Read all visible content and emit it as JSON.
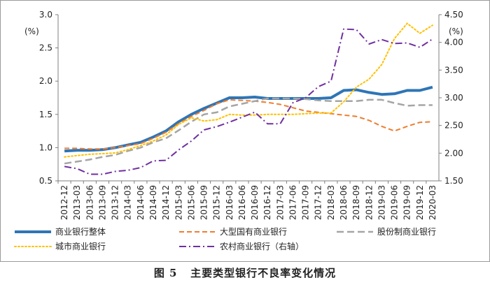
{
  "caption": {
    "figure_label": "图 5",
    "title": "主要类型银行不良率变化情况"
  },
  "chart_data": {
    "type": "line",
    "left_axis": {
      "unit": "(%)",
      "ylim": [
        0.5,
        3.0
      ],
      "ticks": [
        "0.5",
        "1.0",
        "1.5",
        "2.0",
        "2.5",
        "3.0"
      ]
    },
    "right_axis": {
      "unit": "(%)",
      "ylim": [
        1.5,
        4.5
      ],
      "ticks": [
        "1.50",
        "2.00",
        "2.50",
        "3.00",
        "3.50",
        "4.00",
        "4.50"
      ]
    },
    "categories": [
      "2012-12",
      "2013-03",
      "2013-06",
      "2013-09",
      "2013-12",
      "2014-03",
      "2014-06",
      "2014-09",
      "2014-12",
      "2015-03",
      "2015-06",
      "2015-09",
      "2015-12",
      "2016-03",
      "2016-06",
      "2016-09",
      "2016-12",
      "2017-03",
      "2017-06",
      "2017-09",
      "2017-12",
      "2018-03",
      "2018-06",
      "2018-09",
      "2018-12",
      "2019-03",
      "2019-06",
      "2019-09",
      "2019-12",
      "2020-03"
    ],
    "series": [
      {
        "name": "商业银行整体",
        "axis": "left",
        "color": "#2e75b6",
        "style": "solid",
        "values": [
          0.95,
          0.96,
          0.96,
          0.97,
          1.0,
          1.04,
          1.08,
          1.16,
          1.25,
          1.39,
          1.5,
          1.59,
          1.67,
          1.75,
          1.75,
          1.76,
          1.74,
          1.74,
          1.74,
          1.74,
          1.74,
          1.75,
          1.86,
          1.87,
          1.83,
          1.8,
          1.81,
          1.86,
          1.86,
          1.91
        ]
      },
      {
        "name": "大型国有商业银行",
        "axis": "left",
        "color": "#ed7d31",
        "style": "dash",
        "values": [
          0.99,
          0.99,
          0.98,
          0.98,
          1.0,
          1.03,
          1.06,
          1.14,
          1.23,
          1.36,
          1.47,
          1.56,
          1.66,
          1.72,
          1.71,
          1.7,
          1.68,
          1.65,
          1.6,
          1.55,
          1.53,
          1.51,
          1.49,
          1.47,
          1.41,
          1.32,
          1.25,
          1.32,
          1.38,
          1.39
        ]
      },
      {
        "name": "股份制商业银行",
        "axis": "left",
        "color": "#a5a5a5",
        "style": "longdash",
        "values": [
          0.76,
          0.79,
          0.82,
          0.86,
          0.89,
          0.95,
          1.0,
          1.08,
          1.14,
          1.26,
          1.39,
          1.5,
          1.53,
          1.62,
          1.66,
          1.7,
          1.74,
          1.74,
          1.74,
          1.73,
          1.71,
          1.7,
          1.7,
          1.7,
          1.72,
          1.72,
          1.67,
          1.63,
          1.64,
          1.64
        ]
      },
      {
        "name": "城市商业银行",
        "axis": "left",
        "color": "#ffc000",
        "style": "dot",
        "values": [
          0.86,
          0.88,
          0.9,
          0.91,
          0.92,
          0.97,
          1.03,
          1.1,
          1.19,
          1.35,
          1.45,
          1.4,
          1.42,
          1.5,
          1.49,
          1.49,
          1.5,
          1.5,
          1.5,
          1.51,
          1.52,
          1.52,
          1.69,
          1.91,
          2.03,
          2.25,
          2.64,
          2.87,
          2.72,
          2.84
        ]
      },
      {
        "name": "农村商业银行（右轴）",
        "axis": "right",
        "color": "#7030a0",
        "style": "dashdot",
        "values": [
          1.76,
          1.72,
          1.62,
          1.62,
          1.67,
          1.69,
          1.74,
          1.86,
          1.87,
          2.06,
          2.22,
          2.42,
          2.48,
          2.56,
          2.65,
          2.74,
          2.53,
          2.53,
          2.91,
          3.0,
          3.2,
          3.3,
          4.24,
          4.23,
          3.97,
          4.05,
          3.98,
          3.99,
          3.91,
          4.06
        ]
      }
    ]
  }
}
